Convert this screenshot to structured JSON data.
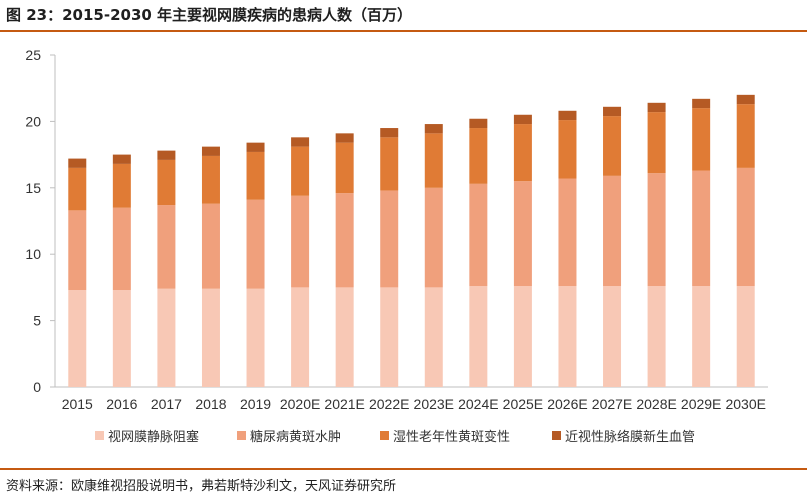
{
  "header": {
    "title": "图 23：2015-2030 年主要视网膜疾病的患病人数（百万）",
    "rule_color": "#c55a11"
  },
  "footer": {
    "source": "资料来源：欧康维视招股说明书，弗若斯特沙利文，天风证券研究所"
  },
  "chart_data": {
    "type": "bar",
    "stacked": true,
    "title": "",
    "xlabel": "",
    "ylabel": "",
    "ylim": [
      0,
      25
    ],
    "yticks": [
      0,
      5,
      10,
      15,
      20,
      25
    ],
    "grid": false,
    "legend_position": "bottom",
    "categories": [
      "2015",
      "2016",
      "2017",
      "2018",
      "2019",
      "2020E",
      "2021E",
      "2022E",
      "2023E",
      "2024E",
      "2025E",
      "2026E",
      "2027E",
      "2028E",
      "2029E",
      "2030E"
    ],
    "series": [
      {
        "name": "视网膜静脉阻塞",
        "color": "#f8c8b5",
        "values": [
          7.3,
          7.3,
          7.4,
          7.4,
          7.4,
          7.5,
          7.5,
          7.5,
          7.5,
          7.6,
          7.6,
          7.6,
          7.6,
          7.6,
          7.6,
          7.6
        ]
      },
      {
        "name": "糖尿病黄斑水肿",
        "color": "#f0a07c",
        "values": [
          6.0,
          6.2,
          6.3,
          6.4,
          6.7,
          6.9,
          7.1,
          7.3,
          7.5,
          7.7,
          7.9,
          8.1,
          8.3,
          8.5,
          8.7,
          8.9
        ]
      },
      {
        "name": "湿性老年性黄斑变性",
        "color": "#e07b35",
        "values": [
          3.2,
          3.3,
          3.4,
          3.6,
          3.6,
          3.7,
          3.8,
          4.0,
          4.1,
          4.2,
          4.3,
          4.4,
          4.5,
          4.6,
          4.7,
          4.8
        ]
      },
      {
        "name": "近视性脉络膜新生血管",
        "color": "#b55a24",
        "values": [
          0.7,
          0.7,
          0.7,
          0.7,
          0.7,
          0.7,
          0.7,
          0.7,
          0.7,
          0.7,
          0.7,
          0.7,
          0.7,
          0.7,
          0.7,
          0.7
        ]
      }
    ]
  }
}
